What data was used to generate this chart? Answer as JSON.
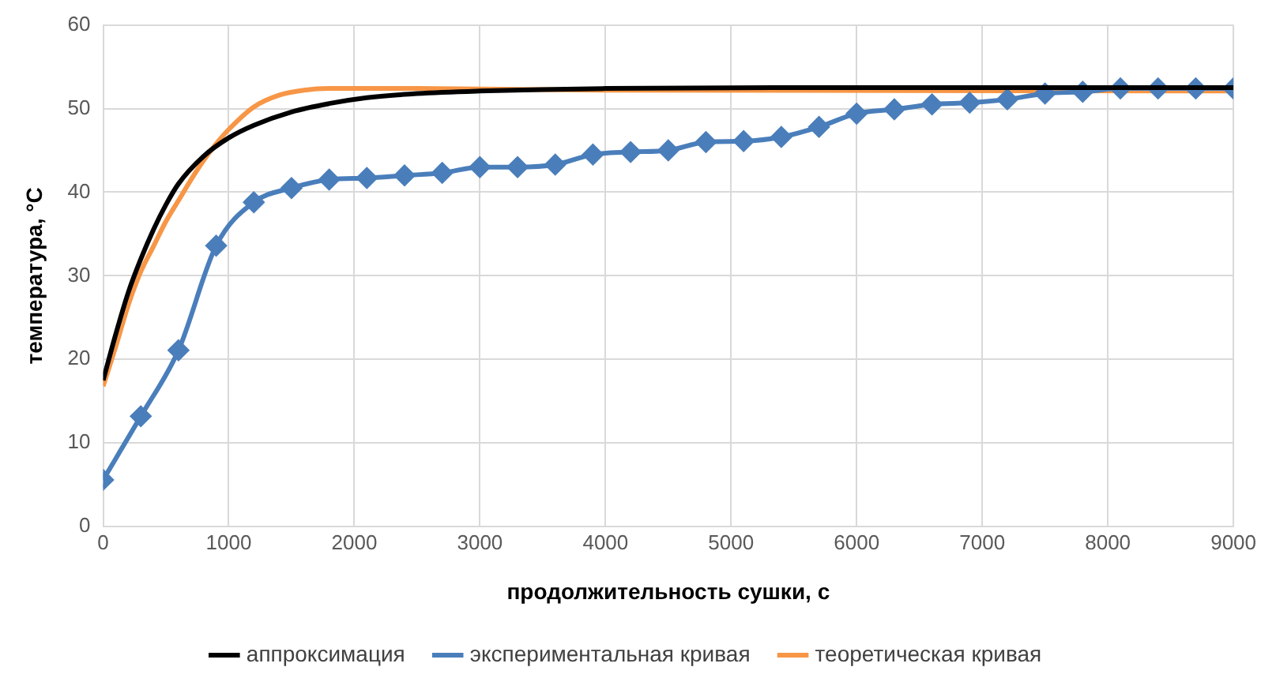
{
  "chart_data": {
    "type": "line",
    "xlabel": "продолжительность сушки, с",
    "ylabel": "температура, °C",
    "xlim": [
      0,
      9000
    ],
    "xticks": [
      0,
      1000,
      2000,
      3000,
      4000,
      5000,
      6000,
      7000,
      8000,
      9000
    ],
    "ylim": [
      0,
      60
    ],
    "yticks": [
      0,
      10,
      20,
      30,
      40,
      50,
      60
    ],
    "grid": true,
    "legend": "bottom",
    "series": [
      {
        "name": "аппроксимация",
        "color": "#000000",
        "marker": "none",
        "x": [
          0,
          100,
          200,
          300,
          400,
          500,
          600,
          800,
          1000,
          1200,
          1500,
          1800,
          2100,
          2500,
          3000,
          4000,
          6000,
          9000
        ],
        "values": [
          17.5,
          23,
          28,
          32,
          35.5,
          38.5,
          41,
          44.3,
          46.5,
          48,
          49.6,
          50.6,
          51.3,
          51.8,
          52.1,
          52.4,
          52.5,
          52.5
        ]
      },
      {
        "name": "экспериментальная кривая",
        "color": "#4a7ebb",
        "marker": "diamond",
        "x": [
          0,
          300,
          600,
          900,
          1200,
          1500,
          1800,
          2100,
          2400,
          2700,
          3000,
          3300,
          3600,
          3900,
          4200,
          4500,
          4800,
          5100,
          5400,
          5700,
          6000,
          6300,
          6600,
          6900,
          7200,
          7500,
          7800,
          8100,
          8400,
          8700,
          9000
        ],
        "values": [
          5.6,
          13.2,
          21.1,
          33.6,
          38.8,
          40.5,
          41.5,
          41.7,
          42.0,
          42.3,
          43.0,
          43.0,
          43.3,
          44.5,
          44.8,
          45.0,
          46.0,
          46.1,
          46.6,
          47.8,
          49.4,
          49.9,
          50.5,
          50.7,
          51.1,
          51.8,
          52.0,
          52.4,
          52.4,
          52.4,
          52.4
        ]
      },
      {
        "name": "теоретическая кривая",
        "color": "#f79646",
        "marker": "none",
        "x": [
          0,
          100,
          200,
          300,
          400,
          500,
          600,
          700,
          800,
          900,
          1000,
          1200,
          1400,
          1600,
          1800,
          2500,
          4000,
          9000
        ],
        "values": [
          16.8,
          21.5,
          26.5,
          30.5,
          33.5,
          36.5,
          39,
          41.5,
          43.8,
          45.8,
          47.5,
          50.2,
          51.6,
          52.2,
          52.4,
          52.4,
          52.2,
          52.1
        ]
      }
    ]
  }
}
